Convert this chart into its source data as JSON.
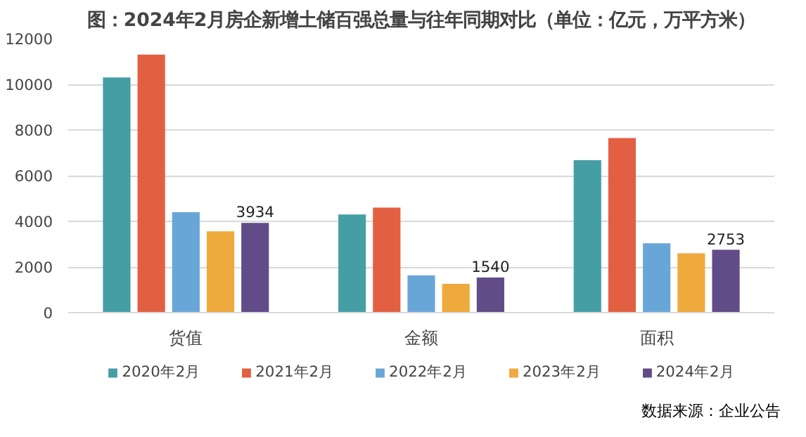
{
  "chart_data": {
    "type": "bar",
    "title": "图：2024年2月房企新增土储百强总量与往年同期对比（单位：亿元，万平方米）",
    "categories": [
      "货值",
      "金额",
      "面积"
    ],
    "series": [
      {
        "name": "2020年2月",
        "color": "#469ea5",
        "values": [
          10300,
          4300,
          6680
        ]
      },
      {
        "name": "2021年2月",
        "color": "#e35f41",
        "values": [
          11300,
          4600,
          7650
        ]
      },
      {
        "name": "2022年2月",
        "color": "#69a6d8",
        "values": [
          4400,
          1630,
          3040
        ]
      },
      {
        "name": "2023年2月",
        "color": "#eeaa3c",
        "values": [
          3560,
          1260,
          2600
        ]
      },
      {
        "name": "2024年2月",
        "color": "#614c87",
        "values": [
          3934,
          1540,
          2753
        ],
        "value_labels": [
          "3934",
          "1540",
          "2753"
        ]
      }
    ],
    "ylim": [
      0,
      12000
    ],
    "yticks": [
      0,
      2000,
      4000,
      6000,
      8000,
      10000,
      12000
    ],
    "grid": "y",
    "legend": "bottom",
    "annotations": [
      "数据来源：企业公告"
    ]
  }
}
